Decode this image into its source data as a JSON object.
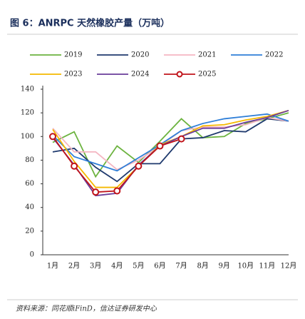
{
  "chart_data": {
    "type": "line",
    "title": "图 6：ANRPC 天然橡胶产量（万吨）",
    "source": "资料来源：同花顺iFinD，信达证券研发中心",
    "categories": [
      "1月",
      "2月",
      "3月",
      "4月",
      "5月",
      "6月",
      "7月",
      "8月",
      "9月",
      "10月",
      "11月",
      "12月"
    ],
    "ylim": [
      0,
      140
    ],
    "yticks": [
      0,
      20,
      40,
      60,
      80,
      100,
      120,
      140
    ],
    "series": [
      {
        "name": "2019",
        "color": "#6cb33f",
        "values": [
          95,
          104,
          66,
          92,
          78,
          96,
          115,
          99,
          100,
          111,
          115,
          120
        ]
      },
      {
        "name": "2020",
        "color": "#1f3a6e",
        "values": [
          87,
          90,
          74,
          62,
          77,
          77,
          98,
          99,
          105,
          104,
          115,
          113
        ]
      },
      {
        "name": "2021",
        "color": "#f4b6c2",
        "values": [
          107,
          87,
          87,
          72,
          80,
          92,
          105,
          108,
          108,
          110,
          116,
          113
        ]
      },
      {
        "name": "2022",
        "color": "#2f7fd8",
        "values": [
          101,
          83,
          77,
          71,
          82,
          93,
          105,
          111,
          115,
          117,
          119,
          113
        ]
      },
      {
        "name": "2023",
        "color": "#f5b800",
        "values": [
          106,
          79,
          57,
          57,
          75,
          93,
          100,
          109,
          110,
          114,
          117,
          122
        ]
      },
      {
        "name": "2024",
        "color": "#6a3d9a",
        "values": [
          99,
          76,
          50,
          52,
          76,
          92,
          100,
          107,
          107,
          112,
          116,
          122
        ]
      },
      {
        "name": "2025",
        "color": "#c0141b",
        "markers": true,
        "values": [
          100,
          75,
          53,
          54,
          75,
          92,
          98,
          null,
          null,
          null,
          null,
          null
        ]
      }
    ]
  }
}
